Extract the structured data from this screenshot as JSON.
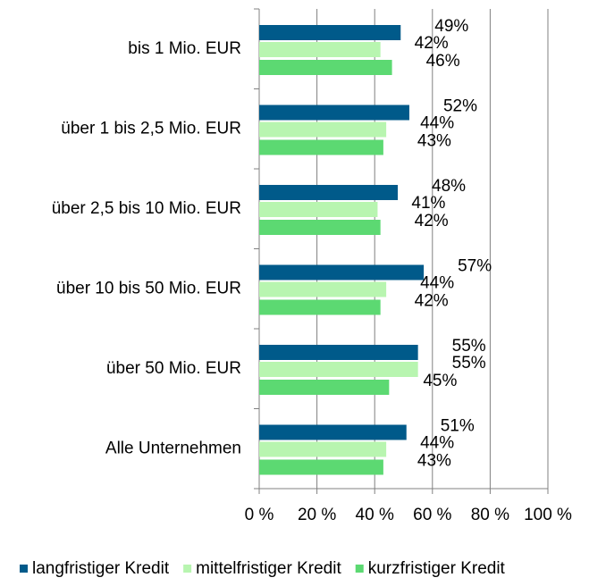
{
  "chart_data": {
    "type": "bar",
    "orientation": "horizontal",
    "categories": [
      "bis 1 Mio. EUR",
      "über 1 bis 2,5 Mio. EUR",
      "über 2,5 bis 10 Mio. EUR",
      "über 10 bis 50 Mio. EUR",
      "über 50 Mio. EUR",
      "Alle Unternehmen"
    ],
    "series": [
      {
        "name": "langfristiger Kredit",
        "color": "#005a8a",
        "values": [
          49,
          52,
          48,
          57,
          55,
          51
        ],
        "value_labels": [
          "49%",
          "52%",
          "48%",
          "57%",
          "55%",
          "51%"
        ]
      },
      {
        "name": "mittelfristiger Kredit",
        "color": "#b8f5b0",
        "values": [
          42,
          44,
          41,
          44,
          55,
          44
        ],
        "value_labels": [
          "42%",
          "44%",
          "41%",
          "44%",
          "55%",
          "44%"
        ]
      },
      {
        "name": "kurzfristiger Kredit",
        "color": "#5cd972",
        "values": [
          46,
          43,
          42,
          42,
          45,
          43
        ],
        "value_labels": [
          "46%",
          "43%",
          "42%",
          "42%",
          "45%",
          "43%"
        ]
      }
    ],
    "xlim": [
      0,
      100
    ],
    "xticks": [
      {
        "value": 0,
        "label": "0 %"
      },
      {
        "value": 20,
        "label": "20 %"
      },
      {
        "value": 40,
        "label": "40 %"
      },
      {
        "value": 60,
        "label": "60 %"
      },
      {
        "value": 80,
        "label": "80 %"
      },
      {
        "value": 100,
        "label": "100 %"
      }
    ],
    "grid": true,
    "legend": "bottom"
  }
}
